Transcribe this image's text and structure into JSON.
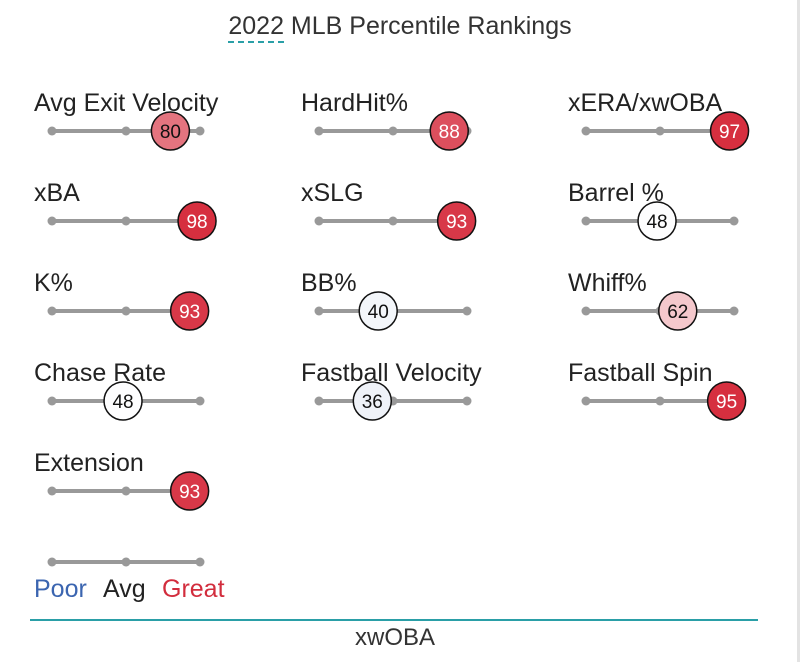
{
  "chart_data": {
    "type": "percentile-slider",
    "title_year": "2022",
    "title_rest": " MLB Percentile Rankings",
    "scale": {
      "min": 0,
      "max": 100,
      "ticks": [
        0,
        50,
        100
      ]
    },
    "metrics": [
      {
        "name": "Avg Exit Velocity",
        "value": 80
      },
      {
        "name": "HardHit%",
        "value": 88
      },
      {
        "name": "xERA/xwOBA",
        "value": 97
      },
      {
        "name": "xBA",
        "value": 98
      },
      {
        "name": "xSLG",
        "value": 93
      },
      {
        "name": "Barrel %",
        "value": 48
      },
      {
        "name": "K%",
        "value": 93
      },
      {
        "name": "BB%",
        "value": 40
      },
      {
        "name": "Whiff%",
        "value": 62
      },
      {
        "name": "Chase Rate",
        "value": 48
      },
      {
        "name": "Fastball Velocity",
        "value": 36
      },
      {
        "name": "Fastball Spin",
        "value": 95
      },
      {
        "name": "Extension",
        "value": 93
      }
    ],
    "legend": {
      "poor": "Poor",
      "avg": "Avg",
      "great": "Great"
    },
    "colors": {
      "poor": "#3b65b0",
      "avg": "#222222",
      "great": "#d22d3d",
      "track": "#999999",
      "accent": "#2a9fa7"
    }
  },
  "bottom_tab": "xwOBA"
}
